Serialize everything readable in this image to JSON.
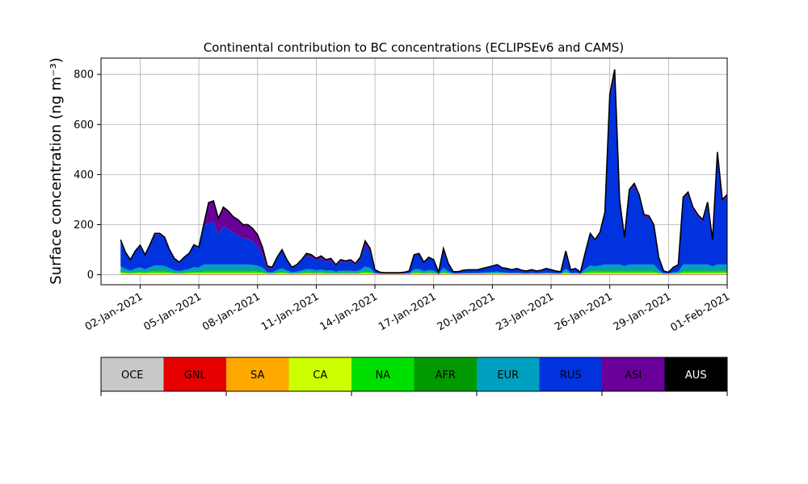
{
  "chart_data": {
    "type": "area",
    "stacked": true,
    "title": "Continental contribution to BC concentrations (ECLIPSEv6 and CAMS)",
    "ylabel": "Surface concentration (ng m⁻³)",
    "xlabel": "",
    "x_start": "2021-01-01",
    "xlim": [
      "2020-12-31",
      "2021-02-01"
    ],
    "ylim": [
      -40,
      865
    ],
    "grid": true,
    "x_ticks": [
      "02-Jan-2021",
      "05-Jan-2021",
      "08-Jan-2021",
      "11-Jan-2021",
      "14-Jan-2021",
      "17-Jan-2021",
      "20-Jan-2021",
      "23-Jan-2021",
      "26-Jan-2021",
      "29-Jan-2021",
      "01-Feb-2021"
    ],
    "y_ticks": [
      0,
      200,
      400,
      600,
      800
    ],
    "total": [
      [
        "2021-01-01 00:00",
        140
      ],
      [
        "2021-01-01 06:00",
        90
      ],
      [
        "2021-01-01 12:00",
        60
      ],
      [
        "2021-01-01 18:00",
        95
      ],
      [
        "2021-01-02 00:00",
        118
      ],
      [
        "2021-01-02 06:00",
        80
      ],
      [
        "2021-01-02 12:00",
        120
      ],
      [
        "2021-01-02 18:00",
        165
      ],
      [
        "2021-01-03 00:00",
        165
      ],
      [
        "2021-01-03 06:00",
        150
      ],
      [
        "2021-01-03 12:00",
        100
      ],
      [
        "2021-01-03 18:00",
        65
      ],
      [
        "2021-01-04 00:00",
        50
      ],
      [
        "2021-01-04 06:00",
        70
      ],
      [
        "2021-01-04 12:00",
        85
      ],
      [
        "2021-01-04 18:00",
        120
      ],
      [
        "2021-01-05 00:00",
        110
      ],
      [
        "2021-01-05 06:00",
        200
      ],
      [
        "2021-01-05 12:00",
        288
      ],
      [
        "2021-01-05 18:00",
        295
      ],
      [
        "2021-01-06 00:00",
        225
      ],
      [
        "2021-01-06 06:00",
        270
      ],
      [
        "2021-01-06 12:00",
        255
      ],
      [
        "2021-01-06 18:00",
        232
      ],
      [
        "2021-01-07 00:00",
        220
      ],
      [
        "2021-01-07 06:00",
        200
      ],
      [
        "2021-01-07 12:00",
        200
      ],
      [
        "2021-01-07 18:00",
        185
      ],
      [
        "2021-01-08 00:00",
        160
      ],
      [
        "2021-01-08 06:00",
        110
      ],
      [
        "2021-01-08 12:00",
        35
      ],
      [
        "2021-01-08 18:00",
        30
      ],
      [
        "2021-01-09 00:00",
        70
      ],
      [
        "2021-01-09 06:00",
        100
      ],
      [
        "2021-01-09 12:00",
        60
      ],
      [
        "2021-01-09 18:00",
        30
      ],
      [
        "2021-01-10 00:00",
        40
      ],
      [
        "2021-01-10 06:00",
        60
      ],
      [
        "2021-01-10 12:00",
        85
      ],
      [
        "2021-01-10 18:00",
        80
      ],
      [
        "2021-01-11 00:00",
        65
      ],
      [
        "2021-01-11 06:00",
        75
      ],
      [
        "2021-01-11 12:00",
        60
      ],
      [
        "2021-01-11 18:00",
        65
      ],
      [
        "2021-01-12 00:00",
        40
      ],
      [
        "2021-01-12 06:00",
        60
      ],
      [
        "2021-01-12 12:00",
        55
      ],
      [
        "2021-01-12 18:00",
        60
      ],
      [
        "2021-01-13 00:00",
        45
      ],
      [
        "2021-01-13 06:00",
        70
      ],
      [
        "2021-01-13 12:00",
        135
      ],
      [
        "2021-01-13 18:00",
        105
      ],
      [
        "2021-01-14 00:00",
        20
      ],
      [
        "2021-01-14 06:00",
        10
      ],
      [
        "2021-01-14 12:00",
        8
      ],
      [
        "2021-01-14 18:00",
        8
      ],
      [
        "2021-01-15 00:00",
        8
      ],
      [
        "2021-01-15 06:00",
        8
      ],
      [
        "2021-01-15 12:00",
        10
      ],
      [
        "2021-01-15 18:00",
        15
      ],
      [
        "2021-01-16 00:00",
        80
      ],
      [
        "2021-01-16 06:00",
        85
      ],
      [
        "2021-01-16 12:00",
        50
      ],
      [
        "2021-01-16 18:00",
        70
      ],
      [
        "2021-01-17 00:00",
        60
      ],
      [
        "2021-01-17 06:00",
        10
      ],
      [
        "2021-01-17 12:00",
        105
      ],
      [
        "2021-01-17 18:00",
        45
      ],
      [
        "2021-01-18 00:00",
        12
      ],
      [
        "2021-01-18 06:00",
        12
      ],
      [
        "2021-01-18 12:00",
        18
      ],
      [
        "2021-01-18 18:00",
        20
      ],
      [
        "2021-01-19 00:00",
        20
      ],
      [
        "2021-01-19 06:00",
        20
      ],
      [
        "2021-01-19 12:00",
        25
      ],
      [
        "2021-01-19 18:00",
        30
      ],
      [
        "2021-01-20 00:00",
        35
      ],
      [
        "2021-01-20 06:00",
        40
      ],
      [
        "2021-01-20 12:00",
        28
      ],
      [
        "2021-01-20 18:00",
        25
      ],
      [
        "2021-01-21 00:00",
        20
      ],
      [
        "2021-01-21 06:00",
        25
      ],
      [
        "2021-01-21 12:00",
        18
      ],
      [
        "2021-01-21 18:00",
        15
      ],
      [
        "2021-01-22 00:00",
        20
      ],
      [
        "2021-01-22 06:00",
        15
      ],
      [
        "2021-01-22 12:00",
        18
      ],
      [
        "2021-01-22 18:00",
        25
      ],
      [
        "2021-01-23 00:00",
        20
      ],
      [
        "2021-01-23 06:00",
        15
      ],
      [
        "2021-01-23 12:00",
        12
      ],
      [
        "2021-01-23 18:00",
        95
      ],
      [
        "2021-01-24 00:00",
        20
      ],
      [
        "2021-01-24 06:00",
        25
      ],
      [
        "2021-01-24 12:00",
        10
      ],
      [
        "2021-01-24 18:00",
        90
      ],
      [
        "2021-01-25 00:00",
        165
      ],
      [
        "2021-01-25 06:00",
        140
      ],
      [
        "2021-01-25 12:00",
        170
      ],
      [
        "2021-01-25 18:00",
        250
      ],
      [
        "2021-01-26 00:00",
        720
      ],
      [
        "2021-01-26 06:00",
        820
      ],
      [
        "2021-01-26 12:00",
        300
      ],
      [
        "2021-01-26 18:00",
        150
      ],
      [
        "2021-01-27 00:00",
        340
      ],
      [
        "2021-01-27 06:00",
        365
      ],
      [
        "2021-01-27 12:00",
        320
      ],
      [
        "2021-01-27 18:00",
        240
      ],
      [
        "2021-01-28 00:00",
        235
      ],
      [
        "2021-01-28 06:00",
        200
      ],
      [
        "2021-01-28 12:00",
        70
      ],
      [
        "2021-01-28 18:00",
        15
      ],
      [
        "2021-01-29 00:00",
        10
      ],
      [
        "2021-01-29 06:00",
        30
      ],
      [
        "2021-01-29 12:00",
        40
      ],
      [
        "2021-01-29 18:00",
        310
      ],
      [
        "2021-01-30 00:00",
        330
      ],
      [
        "2021-01-30 06:00",
        270
      ],
      [
        "2021-01-30 12:00",
        240
      ],
      [
        "2021-01-30 18:00",
        220
      ],
      [
        "2021-01-31 00:00",
        290
      ],
      [
        "2021-01-31 06:00",
        140
      ],
      [
        "2021-01-31 12:00",
        490
      ],
      [
        "2021-01-31 18:00",
        300
      ],
      [
        "2021-02-01 00:00",
        320
      ]
    ],
    "legend": [
      {
        "name": "OCE",
        "color": "#c8c8c8"
      },
      {
        "name": "GNL",
        "color": "#e60000"
      },
      {
        "name": "SA",
        "color": "#ffa800"
      },
      {
        "name": "CA",
        "color": "#ccff00"
      },
      {
        "name": "NA",
        "color": "#00e000"
      },
      {
        "name": "AFR",
        "color": "#009a00"
      },
      {
        "name": "EUR",
        "color": "#00a0c0"
      },
      {
        "name": "RUS",
        "color": "#0033dd"
      },
      {
        "name": "ASI",
        "color": "#6a0099"
      },
      {
        "name": "AUS",
        "color": "#000000"
      }
    ],
    "legend_placement": "bottom"
  }
}
